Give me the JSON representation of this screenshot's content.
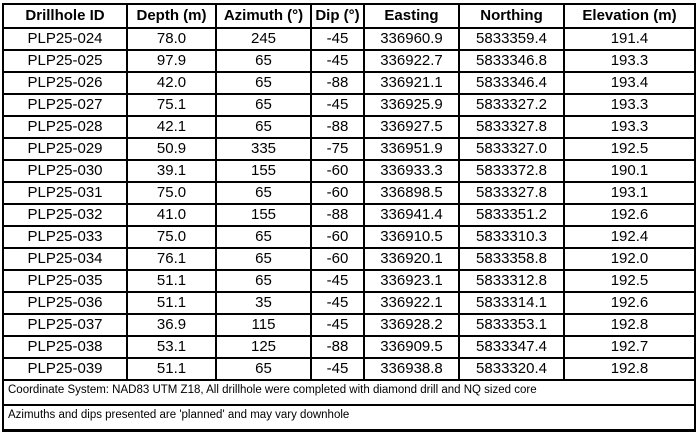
{
  "table": {
    "columns": [
      "Drillhole ID",
      "Depth (m)",
      "Azimuth (°)",
      "Dip (°)",
      "Easting",
      "Northing",
      "Elevation (m)"
    ],
    "rows": [
      [
        "PLP25-024",
        "78.0",
        "245",
        "-45",
        "336960.9",
        "5833359.4",
        "191.4"
      ],
      [
        "PLP25-025",
        "97.9",
        "65",
        "-45",
        "336922.7",
        "5833346.8",
        "193.3"
      ],
      [
        "PLP25-026",
        "42.0",
        "65",
        "-88",
        "336921.1",
        "5833346.4",
        "193.4"
      ],
      [
        "PLP25-027",
        "75.1",
        "65",
        "-45",
        "336925.9",
        "5833327.2",
        "193.3"
      ],
      [
        "PLP25-028",
        "42.1",
        "65",
        "-88",
        "336927.5",
        "5833327.8",
        "193.3"
      ],
      [
        "PLP25-029",
        "50.9",
        "335",
        "-75",
        "336951.9",
        "5833327.0",
        "192.5"
      ],
      [
        "PLP25-030",
        "39.1",
        "155",
        "-60",
        "336933.3",
        "5833372.8",
        "190.1"
      ],
      [
        "PLP25-031",
        "75.0",
        "65",
        "-60",
        "336898.5",
        "5833327.8",
        "193.1"
      ],
      [
        "PLP25-032",
        "41.0",
        "155",
        "-88",
        "336941.4",
        "5833351.2",
        "192.6"
      ],
      [
        "PLP25-033",
        "75.0",
        "65",
        "-60",
        "336910.5",
        "5833310.3",
        "192.4"
      ],
      [
        "PLP25-034",
        "76.1",
        "65",
        "-60",
        "336920.1",
        "5833358.8",
        "192.0"
      ],
      [
        "PLP25-035",
        "51.1",
        "65",
        "-45",
        "336923.1",
        "5833312.8",
        "192.5"
      ],
      [
        "PLP25-036",
        "51.1",
        "35",
        "-45",
        "336922.1",
        "5833314.1",
        "192.6"
      ],
      [
        "PLP25-037",
        "36.9",
        "115",
        "-45",
        "336928.2",
        "5833353.1",
        "192.8"
      ],
      [
        "PLP25-038",
        "53.1",
        "125",
        "-88",
        "336909.5",
        "5833347.4",
        "192.7"
      ],
      [
        "PLP25-039",
        "51.1",
        "65",
        "-45",
        "336938.8",
        "5833320.4",
        "192.8"
      ]
    ]
  },
  "footer": {
    "notes": [
      "Coordinate System: NAD83 UTM Z18, All drillhole were completed with diamond drill and NQ sized core",
      "Azimuths and dips presented are 'planned' and may vary downhole"
    ]
  },
  "colors": {
    "border": "#000000",
    "text": "#000000",
    "background": "#ffffff"
  }
}
